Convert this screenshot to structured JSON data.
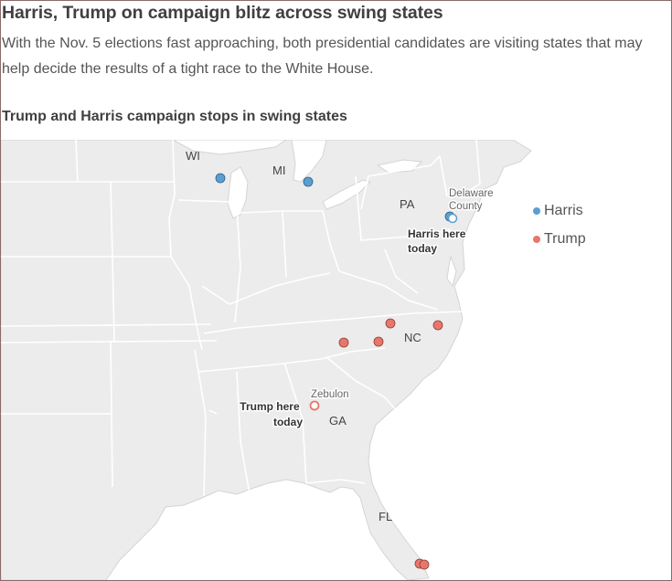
{
  "headline": "Harris, Trump on campaign blitz across swing states",
  "dek": "With the Nov. 5 elections fast approaching, both presidential candidates are visiting states that may help decide the results of a tight race to the White House.",
  "chart_title": "Trump and Harris campaign stops in swing states",
  "state_labels": {
    "wi": "WI",
    "mi": "MI",
    "pa": "PA",
    "nc": "NC",
    "ga": "GA",
    "fl": "FL"
  },
  "place_labels": {
    "delaware": "Delaware County",
    "delaware_line1": "Delaware",
    "delaware_line2": "County",
    "zebulon": "Zebulon"
  },
  "annotations": {
    "harris_today": "Harris here today",
    "harris_line1": "Harris here",
    "harris_line2": "today",
    "trump_today": "Trump here today",
    "trump_line1": "Trump here",
    "trump_line2": "today"
  },
  "legend": [
    {
      "label": "Harris",
      "color": "#5b9fd0"
    },
    {
      "label": "Trump",
      "color": "#e8766d"
    }
  ],
  "colors": {
    "harris": "#5b9fd0",
    "trump": "#e8766d",
    "land": "#ececec",
    "borders": "#ffffff",
    "ocean": "#ffffff"
  },
  "stops": {
    "harris": [
      {
        "place": "Wisconsin"
      },
      {
        "place": "Michigan"
      },
      {
        "place": "Pennsylvania"
      },
      {
        "place": "Delaware County",
        "today": true
      }
    ],
    "trump": [
      {
        "place": "North Carolina"
      },
      {
        "place": "North Carolina"
      },
      {
        "place": "North Carolina"
      },
      {
        "place": "North Carolina"
      },
      {
        "place": "Zebulon",
        "today": true
      },
      {
        "place": "Florida"
      },
      {
        "place": "Florida"
      }
    ]
  }
}
